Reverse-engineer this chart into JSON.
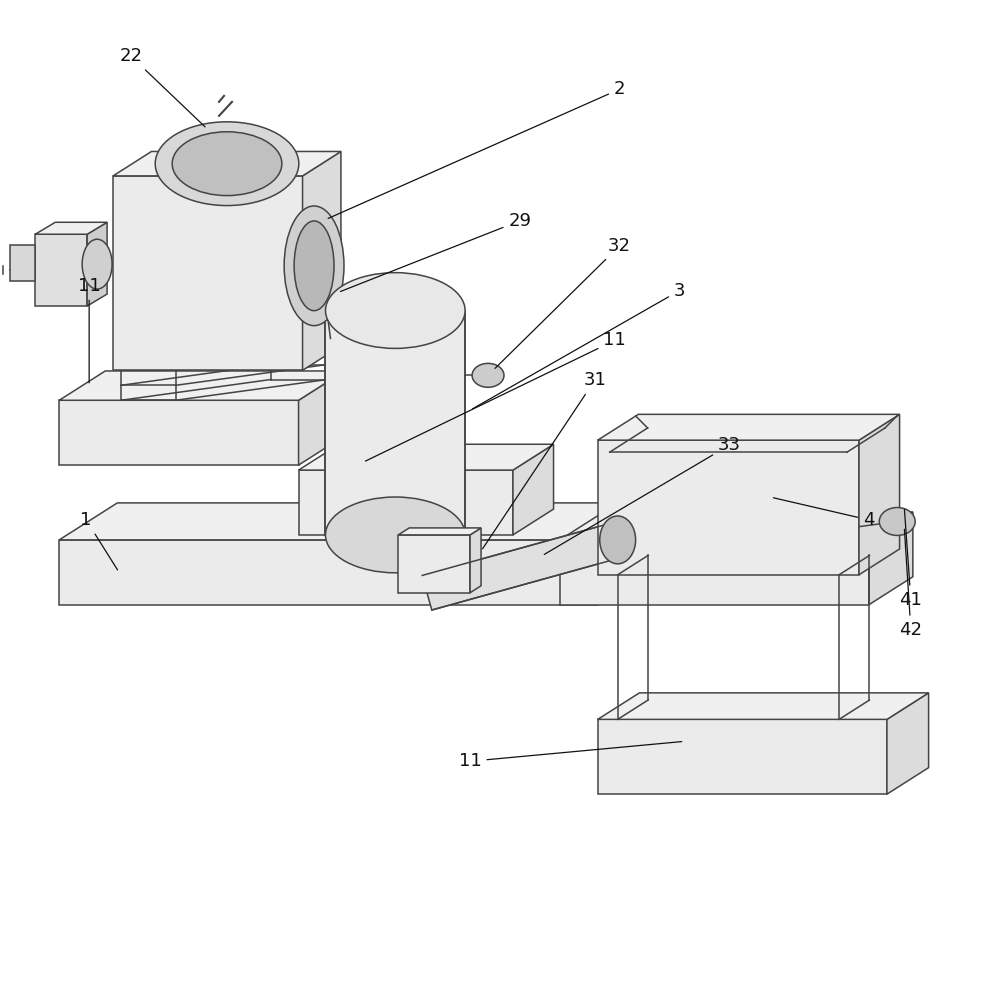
{
  "bg_color": "#ffffff",
  "lc": "#444444",
  "lw": 1.1,
  "label_fs": 13,
  "label_color": "#111111",
  "fc_top": "#f0f0f0",
  "fc_front": "#e8e8e8",
  "fc_right": "#d8d8d8",
  "fc_white": "#fafafa"
}
